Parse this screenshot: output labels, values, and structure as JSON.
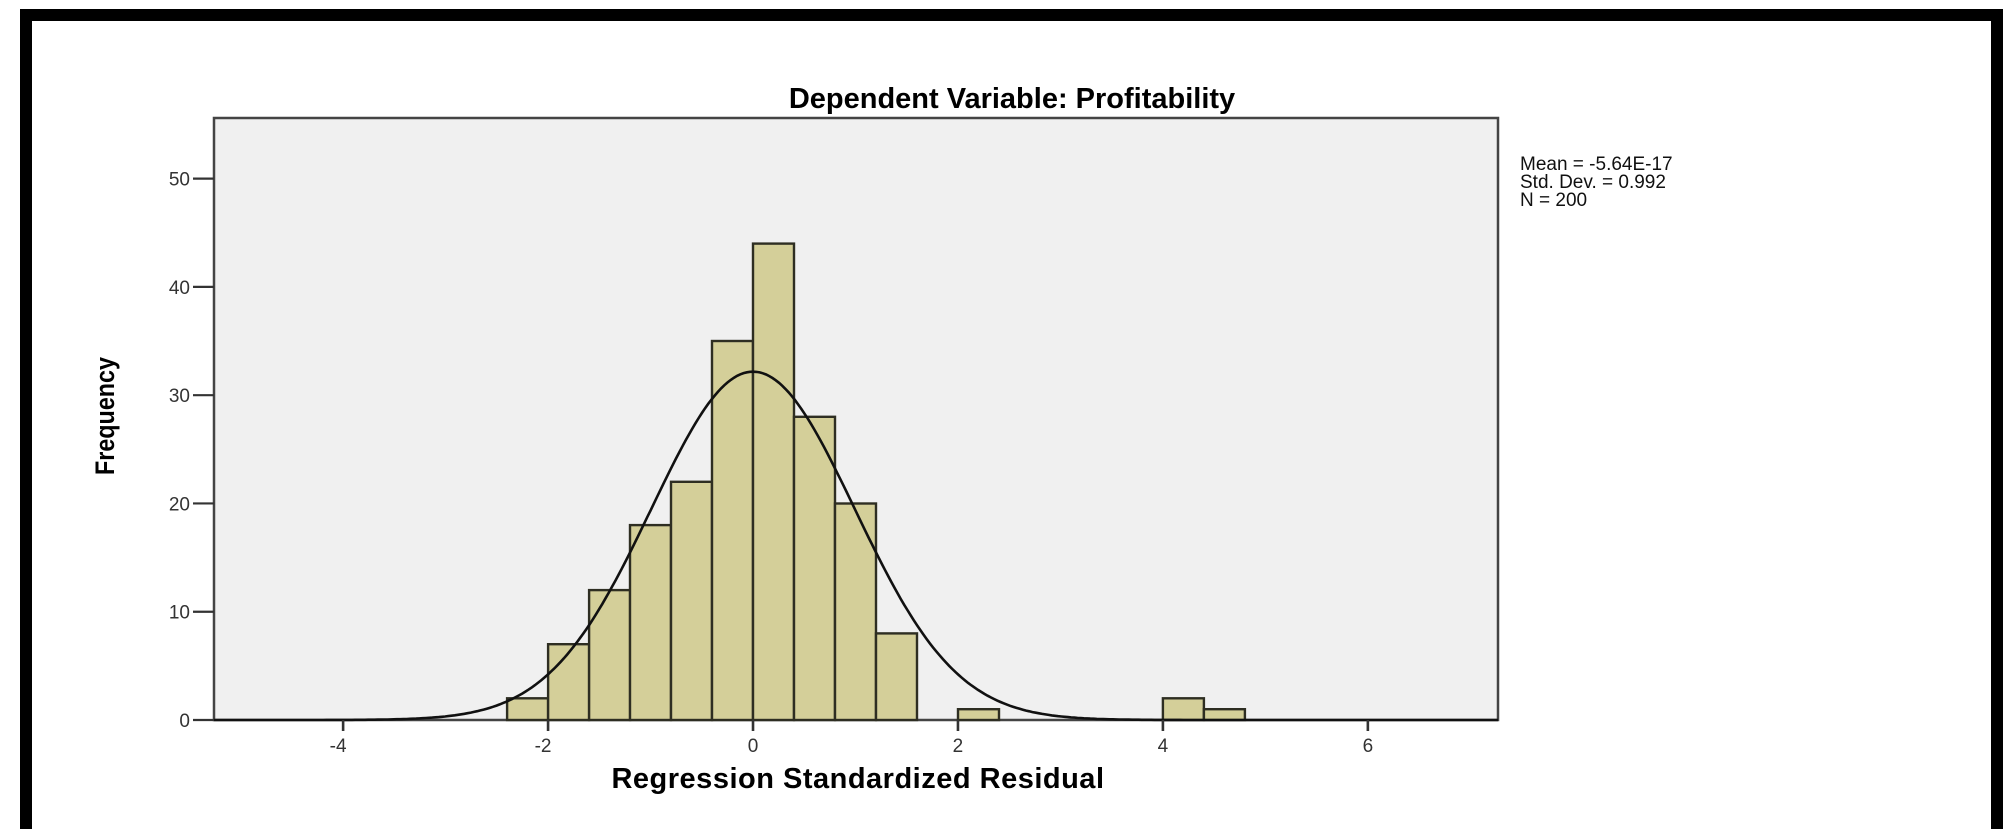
{
  "chart_data": {
    "type": "bar",
    "subtype": "histogram",
    "title": "Dependent Variable: Profitability",
    "xlabel": "Regression Standardized Residual",
    "ylabel": "Frequency",
    "xlim": [
      -5.26,
      7.27
    ],
    "ylim": [
      0,
      55.6
    ],
    "xticks": [
      -4,
      -2,
      0,
      2,
      4,
      6
    ],
    "yticks": [
      0,
      10,
      20,
      30,
      40,
      50
    ],
    "bin_width": 0.4,
    "bins": [
      {
        "x0": -2.4,
        "x1": -2.0,
        "count": 2
      },
      {
        "x0": -2.0,
        "x1": -1.6,
        "count": 7
      },
      {
        "x0": -1.6,
        "x1": -1.2,
        "count": 12
      },
      {
        "x0": -1.2,
        "x1": -0.8,
        "count": 18
      },
      {
        "x0": -0.8,
        "x1": -0.4,
        "count": 22
      },
      {
        "x0": -0.4,
        "x1": 0.0,
        "count": 35
      },
      {
        "x0": 0.0,
        "x1": 0.4,
        "count": 44
      },
      {
        "x0": 0.4,
        "x1": 0.8,
        "count": 28
      },
      {
        "x0": 0.8,
        "x1": 1.2,
        "count": 20
      },
      {
        "x0": 1.2,
        "x1": 1.6,
        "count": 8
      },
      {
        "x0": 2.0,
        "x1": 2.4,
        "count": 1
      },
      {
        "x0": 4.0,
        "x1": 4.4,
        "count": 2
      },
      {
        "x0": 4.4,
        "x1": 4.8,
        "count": 1
      }
    ],
    "normal_curve": {
      "mean": 0,
      "std": 0.992,
      "n": 200,
      "peak": 32.2
    },
    "grid": false,
    "legend": {
      "position": "right-top",
      "lines": [
        "Mean = -5.64E-17",
        "Std. Dev. = 0.992",
        "N = 200"
      ]
    },
    "stats": {
      "mean": "-5.64E-17",
      "std_dev": "0.992",
      "n": "200"
    }
  },
  "colors": {
    "bar_fill": "#D4CF99",
    "bar_stroke": "#2E2E22",
    "plot_bg": "#F0F0F0",
    "axis": "#333333",
    "curve": "#111111",
    "border": "#000000"
  }
}
